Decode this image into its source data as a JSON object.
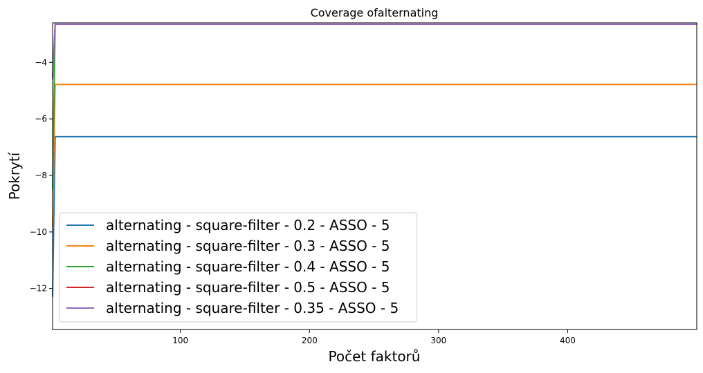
{
  "chart_data": {
    "type": "line",
    "title": "Coverage ofalternating",
    "xlabel": "Počet faktorů",
    "ylabel": "Pokrytí",
    "xlim": [
      1,
      500
    ],
    "ylim": [
      -13.45,
      -2.6
    ],
    "xticks": [
      100,
      200,
      300,
      400
    ],
    "yticks": [
      -12,
      -10,
      -8,
      -6,
      -4
    ],
    "grid": false,
    "legend_position": "lower-left",
    "series": [
      {
        "name": "alternating - square-filter - 0.2 - ASSO - 5",
        "color": "#1f77b4",
        "x": [
          1,
          3,
          500
        ],
        "y": [
          -12.3,
          -6.63,
          -6.63
        ]
      },
      {
        "name": "alternating - square-filter - 0.3 - ASSO - 5",
        "color": "#ff7f0e",
        "x": [
          1,
          3,
          500
        ],
        "y": [
          -9.8,
          -4.78,
          -4.78
        ]
      },
      {
        "name": "alternating - square-filter - 0.4 - ASSO - 5",
        "color": "#2ca02c",
        "x": [
          1,
          3,
          500
        ],
        "y": [
          -8.5,
          -2.65,
          -2.65
        ]
      },
      {
        "name": "alternating - square-filter - 0.5 - ASSO - 5",
        "color": "#d62728",
        "x": [
          1,
          3,
          500
        ],
        "y": [
          -4.5,
          -2.65,
          -2.65
        ]
      },
      {
        "name": "alternating - square-filter - 0.35 - ASSO - 5",
        "color": "#9467bd",
        "x": [
          1,
          3,
          500
        ],
        "y": [
          -4.6,
          -2.65,
          -2.65
        ]
      }
    ]
  }
}
